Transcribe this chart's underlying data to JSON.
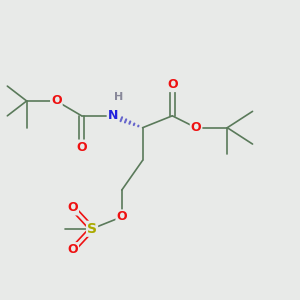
{
  "background_color": "#e8eae8",
  "bond_color": "#5a7a5a",
  "atom_colors": {
    "O": "#ee1111",
    "N": "#2222dd",
    "S": "#aaaa00",
    "H": "#888899",
    "C": "#5a7a5a"
  },
  "figsize": [
    3.0,
    3.0
  ],
  "dpi": 100,
  "lw": 1.2
}
